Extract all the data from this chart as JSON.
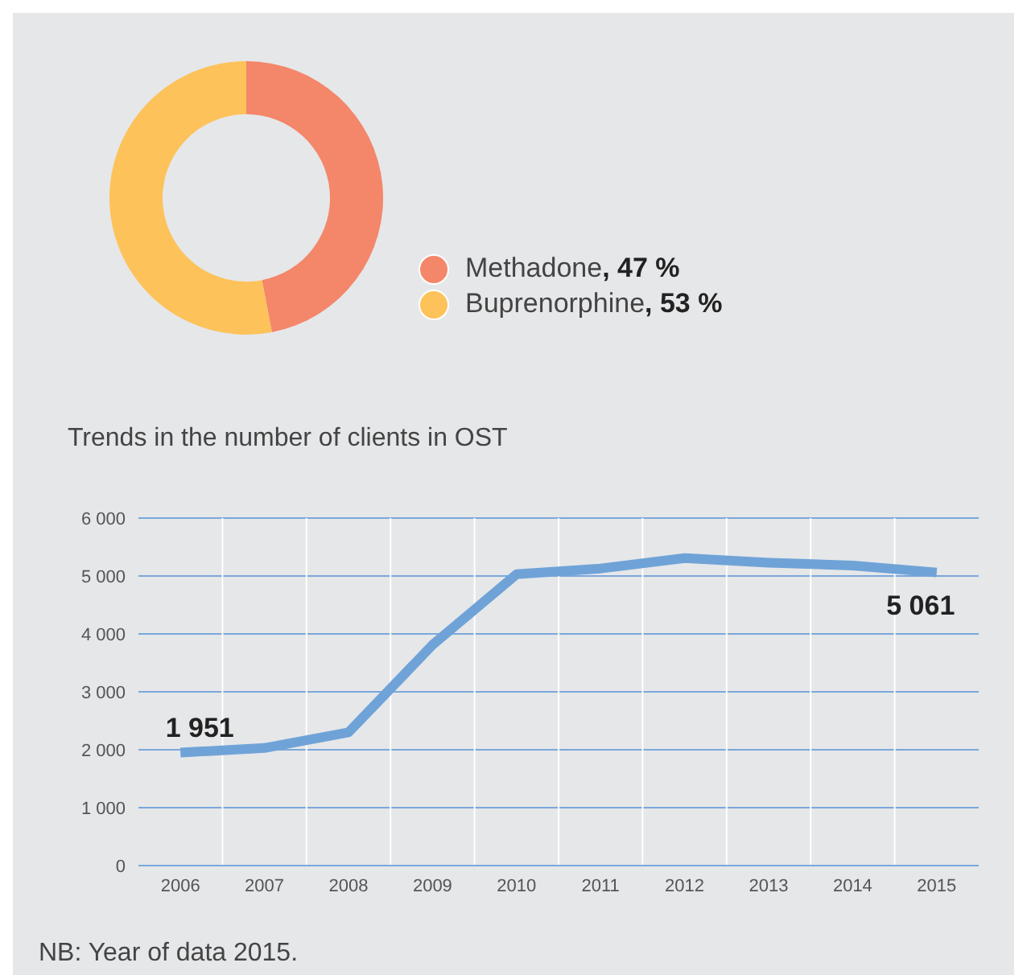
{
  "chart_data": [
    {
      "type": "donut",
      "categories": [
        "Methadone",
        "Buprenorphine"
      ],
      "values": [
        47,
        53
      ],
      "colors": [
        "#f4866a",
        "#fdc25a"
      ],
      "value_labels": [
        ", 47 %",
        ", 53 %"
      ],
      "legend": "right"
    },
    {
      "type": "line",
      "title": "Trends in the number of clients in OST",
      "categories": [
        "2006",
        "2007",
        "2008",
        "2009",
        "2010",
        "2011",
        "2012",
        "2013",
        "2014",
        "2015"
      ],
      "series": [
        {
          "color": "#6fa3d8",
          "values": [
            1951,
            2030,
            2300,
            3810,
            5030,
            5130,
            5310,
            5230,
            5180,
            5061
          ],
          "value_labels": [
            "1 951",
            null,
            null,
            null,
            null,
            null,
            null,
            null,
            null,
            "5 061"
          ]
        }
      ],
      "ylim": [
        0,
        6000
      ],
      "yticks": [
        0,
        {
          "value": 1000,
          "label": "1 000"
        },
        {
          "value": 2000,
          "label": "2 000"
        },
        {
          "value": 3000,
          "label": "3 000"
        },
        {
          "value": 4000,
          "label": "4 000"
        },
        {
          "value": 5000,
          "label": "5 000"
        },
        {
          "value": 6000,
          "label": "6 000"
        }
      ],
      "grid": true,
      "line_style": "solid",
      "annotations": [
        "NB: Year of data 2015."
      ]
    }
  ]
}
